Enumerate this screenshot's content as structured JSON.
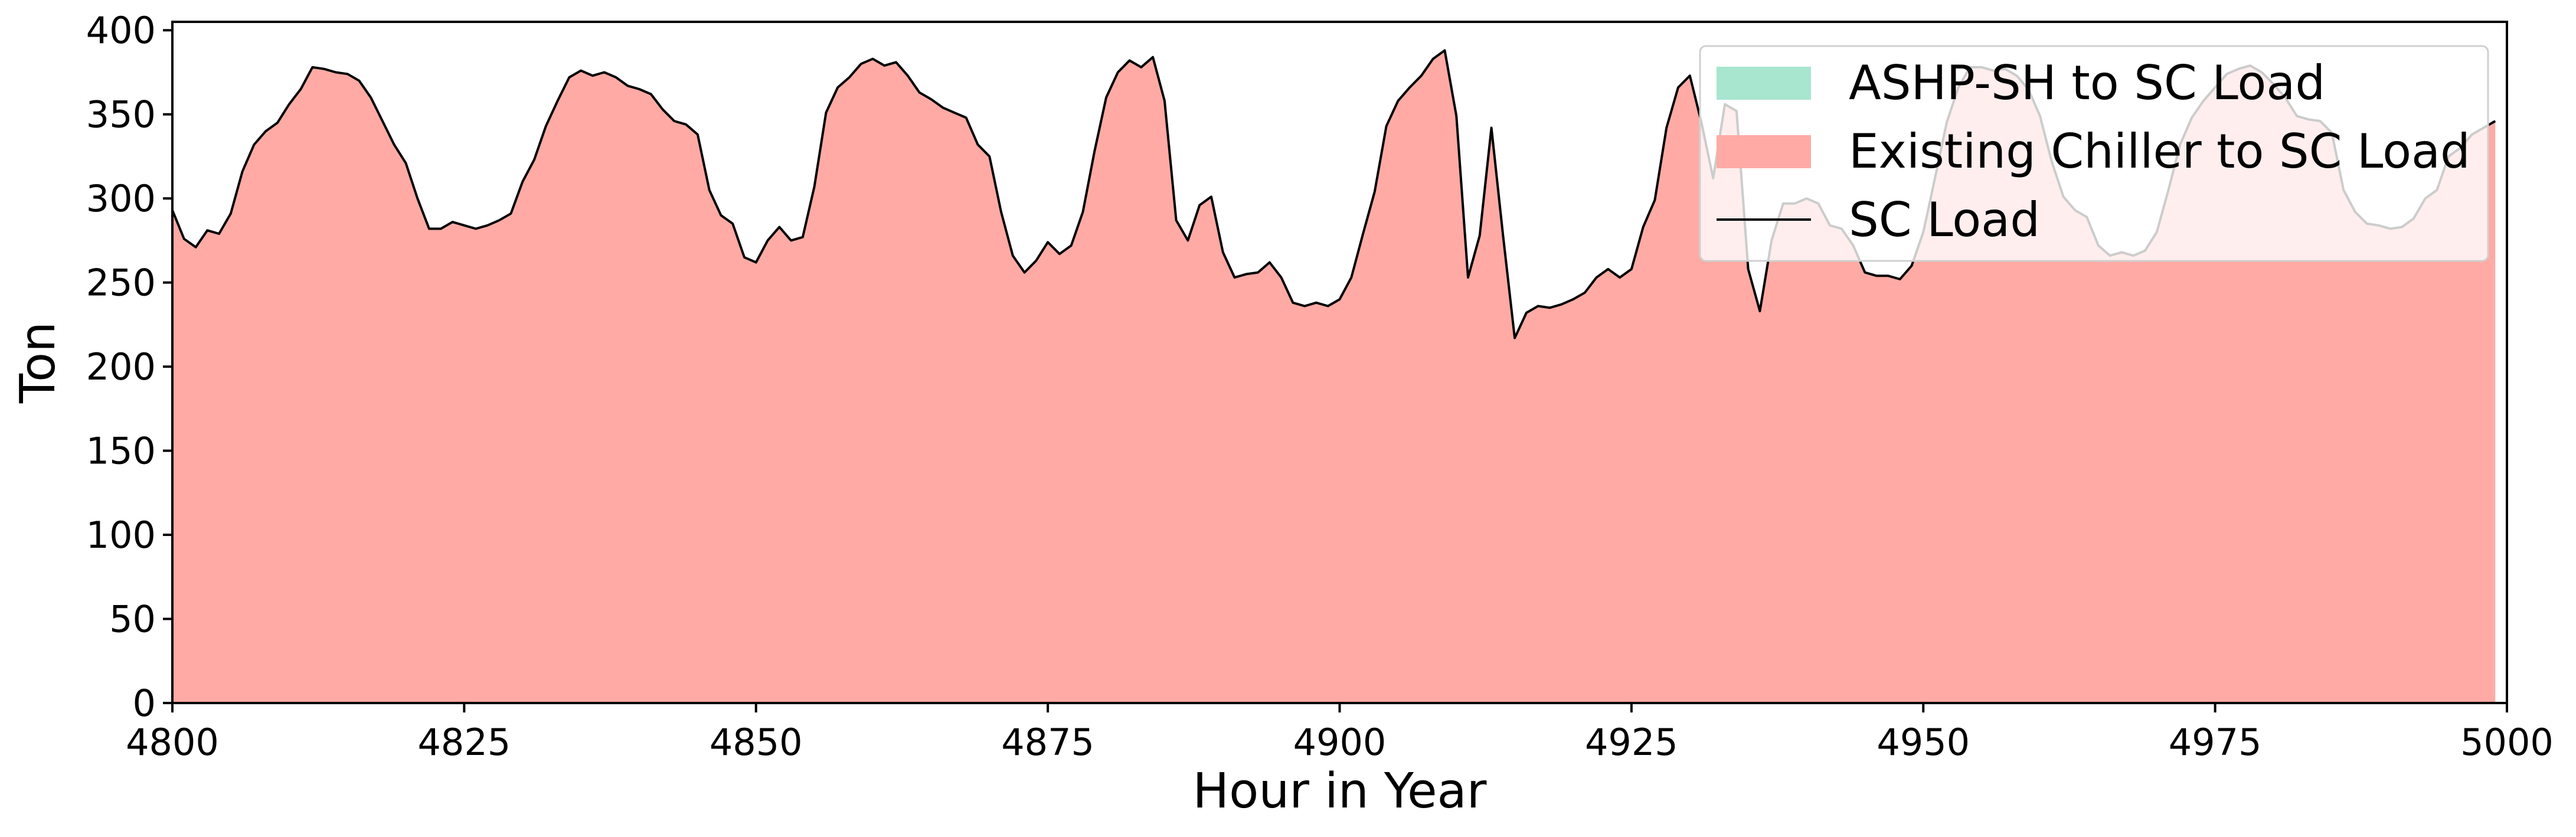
{
  "chart_data": {
    "type": "area",
    "title": "",
    "xlabel": "Hour in Year",
    "ylabel": "Ton",
    "xlim": [
      4800,
      5000
    ],
    "ylim": [
      0,
      405
    ],
    "xticks": [
      4800,
      4825,
      4850,
      4875,
      4900,
      4925,
      4950,
      4975,
      5000
    ],
    "yticks": [
      0,
      50,
      100,
      150,
      200,
      250,
      300,
      350,
      400
    ],
    "grid": false,
    "legend_position": "top-right",
    "x_start": 4800,
    "x_step": 1,
    "series": [
      {
        "name": "ASHP-SH to SC Load",
        "kind": "stacked-area",
        "color": "#a8e6cf",
        "values": [
          0,
          0,
          0,
          0,
          0,
          0,
          0,
          0,
          0,
          0,
          0,
          0,
          0,
          0,
          0,
          0,
          0,
          0,
          0,
          0,
          0,
          0,
          0,
          0,
          0,
          0,
          0,
          0,
          0,
          0,
          0,
          0,
          0,
          0,
          0,
          0,
          0,
          0,
          0,
          0,
          0,
          0,
          0,
          0,
          0,
          0,
          0,
          0,
          0,
          0,
          0,
          0,
          0,
          0,
          0,
          0,
          0,
          0,
          0,
          0,
          0,
          0,
          0,
          0,
          0,
          0,
          0,
          0,
          0,
          0,
          0,
          0,
          0,
          0,
          0,
          0,
          0,
          0,
          0,
          0,
          0,
          0,
          0,
          0,
          0,
          0,
          0,
          0,
          0,
          0,
          0,
          0,
          0,
          0,
          0,
          0,
          0,
          0,
          0,
          0,
          0,
          0,
          0,
          0,
          0,
          0,
          0,
          0,
          0,
          0,
          0,
          0,
          0,
          0,
          0,
          0,
          0,
          0,
          0,
          0,
          0,
          0,
          0,
          0,
          0,
          0,
          0,
          0,
          0,
          0,
          0,
          0,
          0,
          0,
          0,
          0,
          0,
          0,
          0,
          0,
          0,
          0,
          0,
          0,
          0,
          0,
          0,
          0,
          0,
          0,
          0,
          0,
          0,
          0,
          0,
          0,
          0,
          0,
          0,
          0,
          0,
          0,
          0,
          0,
          0,
          0,
          0,
          0,
          0,
          0,
          0,
          0,
          0,
          0,
          0,
          0,
          0,
          0,
          0,
          0,
          0,
          0,
          0,
          0,
          0,
          0,
          0,
          0,
          0,
          0,
          0,
          0,
          0,
          0,
          0,
          0,
          0,
          0,
          0,
          0
        ]
      },
      {
        "name": "Existing Chiller to SC Load",
        "kind": "stacked-area",
        "color": "#ffaaa5",
        "values": [
          293,
          276,
          271,
          281,
          279,
          291,
          316,
          332,
          340,
          345,
          356,
          365,
          378,
          377,
          375,
          374,
          370,
          360,
          346,
          332,
          321,
          300,
          282,
          282,
          286,
          284,
          282,
          284,
          287,
          291,
          310,
          323,
          343,
          358,
          372,
          376,
          373,
          375,
          372,
          367,
          365,
          362,
          353,
          346,
          344,
          338,
          305,
          290,
          285,
          265,
          262,
          275,
          283,
          275,
          277,
          307,
          351,
          366,
          372,
          380,
          383,
          379,
          381,
          373,
          363,
          359,
          354,
          351,
          348,
          332,
          325,
          292,
          266,
          256,
          263,
          274,
          267,
          272,
          292,
          328,
          360,
          375,
          382,
          378,
          384,
          358,
          287,
          275,
          296,
          301,
          268,
          253,
          255,
          256,
          262,
          253,
          238,
          236,
          238,
          236,
          240,
          253,
          279,
          304,
          343,
          358,
          366,
          373,
          383,
          388,
          349,
          253,
          278,
          342,
          278,
          217,
          232,
          236,
          235,
          237,
          240,
          244,
          253,
          258,
          253,
          258,
          283,
          299,
          342,
          366,
          373,
          345,
          312,
          356,
          352,
          258,
          233,
          275,
          297,
          297,
          300,
          297,
          284,
          282,
          272,
          256,
          254,
          254,
          252,
          260,
          280,
          312,
          345,
          366,
          378,
          378,
          376,
          377,
          373,
          365,
          349,
          322,
          301,
          293,
          289,
          272,
          266,
          268,
          266,
          269,
          280,
          305,
          332,
          348,
          358,
          366,
          374,
          377,
          379,
          375,
          368,
          360,
          349,
          347,
          346,
          339,
          305,
          292,
          285,
          284,
          282,
          283,
          288,
          300,
          305,
          325,
          330,
          338,
          342,
          346
        ]
      },
      {
        "name": "SC Load",
        "kind": "line",
        "color": "#000000",
        "values": [
          293,
          276,
          271,
          281,
          279,
          291,
          316,
          332,
          340,
          345,
          356,
          365,
          378,
          377,
          375,
          374,
          370,
          360,
          346,
          332,
          321,
          300,
          282,
          282,
          286,
          284,
          282,
          284,
          287,
          291,
          310,
          323,
          343,
          358,
          372,
          376,
          373,
          375,
          372,
          367,
          365,
          362,
          353,
          346,
          344,
          338,
          305,
          290,
          285,
          265,
          262,
          275,
          283,
          275,
          277,
          307,
          351,
          366,
          372,
          380,
          383,
          379,
          381,
          373,
          363,
          359,
          354,
          351,
          348,
          332,
          325,
          292,
          266,
          256,
          263,
          274,
          267,
          272,
          292,
          328,
          360,
          375,
          382,
          378,
          384,
          358,
          287,
          275,
          296,
          301,
          268,
          253,
          255,
          256,
          262,
          253,
          238,
          236,
          238,
          236,
          240,
          253,
          279,
          304,
          343,
          358,
          366,
          373,
          383,
          388,
          349,
          253,
          278,
          342,
          278,
          217,
          232,
          236,
          235,
          237,
          240,
          244,
          253,
          258,
          253,
          258,
          283,
          299,
          342,
          366,
          373,
          345,
          312,
          356,
          352,
          258,
          233,
          275,
          297,
          297,
          300,
          297,
          284,
          282,
          272,
          256,
          254,
          254,
          252,
          260,
          280,
          312,
          345,
          366,
          378,
          378,
          376,
          377,
          373,
          365,
          349,
          322,
          301,
          293,
          289,
          272,
          266,
          268,
          266,
          269,
          280,
          305,
          332,
          348,
          358,
          366,
          374,
          377,
          379,
          375,
          368,
          360,
          349,
          347,
          346,
          339,
          305,
          292,
          285,
          284,
          282,
          283,
          288,
          300,
          305,
          325,
          330,
          338,
          342,
          346
        ]
      }
    ]
  }
}
